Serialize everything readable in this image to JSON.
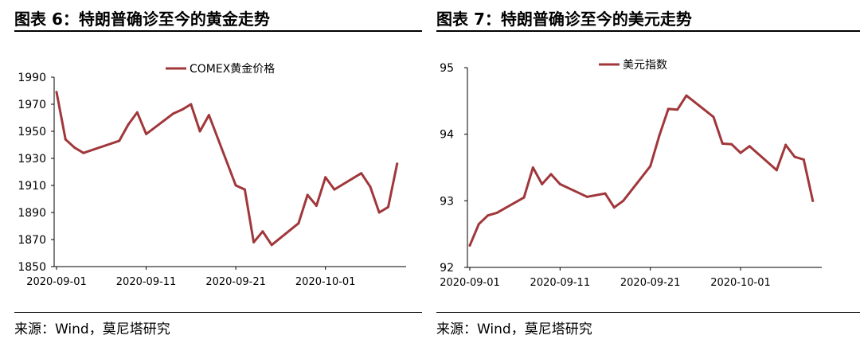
{
  "charts": [
    {
      "figure_title": "图表 6：特朗普确诊至今的黄金走势",
      "source": "来源：Wind，莫尼塔研究"
    },
    {
      "figure_title": "图表 7：特朗普确诊至今的美元走势",
      "source": "来源：Wind，莫尼塔研究"
    }
  ],
  "chart_data": [
    {
      "type": "line",
      "title": "",
      "xlabel": "",
      "ylabel": "",
      "xlim": [
        "2020-09-01",
        "2020-10-10"
      ],
      "ylim": [
        1850,
        1990
      ],
      "yticks": [
        "1990",
        "1970",
        "1950",
        "1930",
        "1910",
        "1890",
        "1870",
        "1850"
      ],
      "xticks": [
        "2020-09-01",
        "2020-09-11",
        "2020-09-21",
        "2020-10-01"
      ],
      "grid": false,
      "legend": "top",
      "line_color": "#A0373B",
      "series": [
        {
          "name": "COMEX黄金价格",
          "x": [
            "2020-09-01",
            "2020-09-02",
            "2020-09-03",
            "2020-09-04",
            "2020-09-08",
            "2020-09-09",
            "2020-09-10",
            "2020-09-11",
            "2020-09-14",
            "2020-09-15",
            "2020-09-16",
            "2020-09-17",
            "2020-09-18",
            "2020-09-21",
            "2020-09-22",
            "2020-09-23",
            "2020-09-24",
            "2020-09-25",
            "2020-09-28",
            "2020-09-29",
            "2020-09-30",
            "2020-10-01",
            "2020-10-02",
            "2020-10-05",
            "2020-10-06",
            "2020-10-07",
            "2020-10-08",
            "2020-10-09"
          ],
          "values": [
            1979,
            1944,
            1938,
            1934,
            1943,
            1955,
            1964,
            1948,
            1963,
            1966,
            1970,
            1950,
            1962,
            1910,
            1907,
            1868,
            1876,
            1866,
            1882,
            1903,
            1895,
            1916,
            1907,
            1919,
            1909,
            1890,
            1894,
            1926
          ]
        }
      ]
    },
    {
      "type": "line",
      "title": "",
      "xlabel": "",
      "ylabel": "",
      "xlim": [
        "2020-09-01",
        "2020-10-10"
      ],
      "ylim": [
        92,
        95
      ],
      "yticks": [
        "95",
        "94",
        "93",
        "92"
      ],
      "xticks": [
        "2020-09-01",
        "2020-09-11",
        "2020-09-21",
        "2020-10-01"
      ],
      "grid": false,
      "legend": "top",
      "line_color": "#A0373B",
      "series": [
        {
          "name": "美元指数",
          "x": [
            "2020-09-01",
            "2020-09-02",
            "2020-09-03",
            "2020-09-04",
            "2020-09-07",
            "2020-09-08",
            "2020-09-09",
            "2020-09-10",
            "2020-09-11",
            "2020-09-14",
            "2020-09-16",
            "2020-09-17",
            "2020-09-18",
            "2020-09-21",
            "2020-09-22",
            "2020-09-23",
            "2020-09-24",
            "2020-09-25",
            "2020-09-28",
            "2020-09-29",
            "2020-09-30",
            "2020-10-01",
            "2020-10-02",
            "2020-10-05",
            "2020-10-06",
            "2020-10-07",
            "2020-10-08",
            "2020-10-09"
          ],
          "values": [
            92.33,
            92.65,
            92.78,
            92.82,
            93.05,
            93.5,
            93.25,
            93.4,
            93.25,
            93.06,
            93.11,
            92.9,
            93.0,
            93.52,
            93.98,
            94.38,
            94.37,
            94.58,
            94.26,
            93.86,
            93.85,
            93.72,
            93.82,
            93.46,
            93.84,
            93.66,
            93.62,
            93.0
          ]
        }
      ]
    }
  ]
}
